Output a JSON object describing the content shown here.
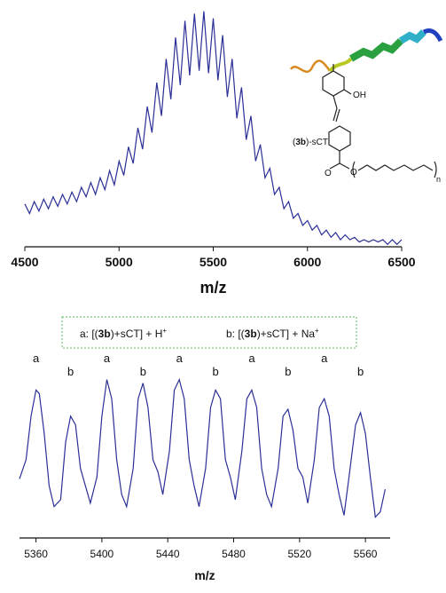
{
  "chart_data": [
    {
      "type": "line",
      "x_label": "m/z",
      "color": "#2b2f96",
      "xlim": [
        4500,
        6500
      ],
      "xticks": [
        4500,
        5000,
        5500,
        6000,
        6500
      ],
      "ylim": [
        0,
        100
      ],
      "x": [
        4500,
        4525,
        4550,
        4575,
        4600,
        4625,
        4650,
        4675,
        4700,
        4725,
        4750,
        4775,
        4800,
        4825,
        4850,
        4875,
        4900,
        4925,
        4950,
        4975,
        5000,
        5025,
        5050,
        5075,
        5100,
        5125,
        5150,
        5175,
        5200,
        5225,
        5250,
        5275,
        5300,
        5325,
        5350,
        5375,
        5400,
        5425,
        5450,
        5475,
        5500,
        5525,
        5550,
        5575,
        5600,
        5625,
        5650,
        5675,
        5700,
        5725,
        5750,
        5775,
        5800,
        5825,
        5850,
        5875,
        5900,
        5925,
        5950,
        5975,
        6000,
        6025,
        6050,
        6075,
        6100,
        6125,
        6150,
        6175,
        6200,
        6225,
        6250,
        6275,
        6300,
        6325,
        6350,
        6375,
        6400,
        6425,
        6450,
        6475,
        6500
      ],
      "values": [
        18,
        14,
        19,
        15,
        20,
        16,
        21,
        17,
        22,
        18,
        23,
        19,
        25,
        21,
        27,
        22,
        29,
        24,
        32,
        26,
        36,
        30,
        42,
        35,
        50,
        41,
        59,
        48,
        69,
        55,
        79,
        62,
        88,
        68,
        95,
        72,
        98,
        74,
        99,
        73,
        96,
        70,
        89,
        63,
        79,
        54,
        67,
        45,
        55,
        36,
        43,
        29,
        33,
        22,
        25,
        16,
        19,
        12,
        14,
        9,
        11,
        7,
        9,
        5,
        7,
        4,
        6,
        3,
        5,
        3,
        4,
        2,
        3,
        2,
        3,
        2,
        3,
        1,
        3,
        1,
        3
      ],
      "structure_labels": {
        "name_open": "(",
        "name_bold": "3b",
        "name_rest": ")-sCT",
        "hydroxyl": "OH",
        "oxygen": "O",
        "repeat": "n"
      }
    },
    {
      "type": "line",
      "x_label": "m/z",
      "color": "#2b2f96",
      "xlim": [
        5350,
        5575
      ],
      "xticks": [
        5360,
        5400,
        5440,
        5480,
        5520,
        5560
      ],
      "ylim": [
        0,
        100
      ],
      "legend_entries": [
        {
          "prefix": "a: [(",
          "bold": "3b",
          "suffix": ")+sCT] + H",
          "superscript": "+"
        },
        {
          "prefix": "b: [(",
          "bold": "3b",
          "suffix": ")+sCT] + Na",
          "superscript": "+"
        }
      ],
      "annotations": [
        {
          "text": "a",
          "x": 5360
        },
        {
          "text": "b",
          "x": 5381
        },
        {
          "text": "a",
          "x": 5403
        },
        {
          "text": "b",
          "x": 5425
        },
        {
          "text": "a",
          "x": 5447
        },
        {
          "text": "b",
          "x": 5469
        },
        {
          "text": "a",
          "x": 5491
        },
        {
          "text": "b",
          "x": 5513
        },
        {
          "text": "a",
          "x": 5535
        },
        {
          "text": "b",
          "x": 5557
        }
      ],
      "x": [
        5350,
        5354,
        5357,
        5360,
        5362,
        5365,
        5368,
        5371,
        5375,
        5378,
        5381,
        5384,
        5387,
        5390,
        5393,
        5397,
        5400,
        5403,
        5406,
        5409,
        5412,
        5415,
        5419,
        5422,
        5425,
        5428,
        5431,
        5434,
        5437,
        5441,
        5444,
        5447,
        5450,
        5453,
        5456,
        5459,
        5463,
        5466,
        5469,
        5472,
        5475,
        5478,
        5481,
        5485,
        5488,
        5491,
        5494,
        5497,
        5500,
        5503,
        5507,
        5510,
        5513,
        5516,
        5519,
        5522,
        5525,
        5529,
        5532,
        5535,
        5538,
        5541,
        5544,
        5547,
        5550,
        5554,
        5557,
        5560,
        5563,
        5566,
        5569,
        5572
      ],
      "values": [
        34,
        45,
        70,
        85,
        83,
        60,
        30,
        18,
        22,
        55,
        70,
        65,
        40,
        30,
        20,
        35,
        70,
        91,
        80,
        45,
        25,
        18,
        40,
        80,
        89,
        75,
        45,
        38,
        25,
        50,
        85,
        91,
        80,
        45,
        30,
        18,
        40,
        75,
        85,
        80,
        45,
        35,
        22,
        50,
        80,
        85,
        75,
        40,
        25,
        18,
        40,
        70,
        74,
        62,
        40,
        35,
        20,
        45,
        75,
        80,
        70,
        40,
        25,
        13,
        35,
        65,
        72,
        60,
        35,
        12,
        15,
        28
      ]
    }
  ]
}
